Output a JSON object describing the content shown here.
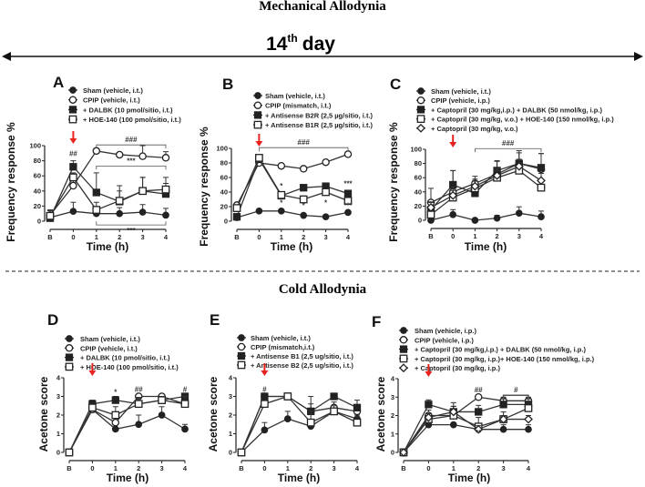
{
  "header": {
    "section1_title": "Mechanical Allodynia",
    "day_label": "14",
    "day_sup": "th",
    "day_word": "day",
    "section2_title": "Cold Allodynia"
  },
  "colors": {
    "mark": "#222222",
    "arrow": "#e8231f"
  },
  "chart_data": [
    {
      "type": "line",
      "panel": "A",
      "xlabel": "Time (h)",
      "ylabel": "Frequency response %",
      "categories": [
        "B",
        "0",
        "1",
        "2",
        "3",
        "4"
      ],
      "ylim": [
        0,
        100
      ],
      "yticks": [
        0,
        20,
        40,
        60,
        80,
        100
      ],
      "series": [
        {
          "name": "Sham (vehicle, i.t.)",
          "marker": "filled-circle",
          "values": [
            5,
            13,
            10,
            10,
            12,
            8
          ],
          "err": [
            10,
            12,
            8,
            8,
            10,
            9
          ]
        },
        {
          "name": "CPIP (vehicle, i.t.)",
          "marker": "open-circle",
          "values": [
            8,
            47,
            93,
            88,
            86,
            84
          ],
          "err": [
            6,
            8,
            3,
            3,
            14,
            8
          ]
        },
        {
          "name": "+ DALBK (10 pmol/sitio, i.t.)",
          "marker": "filled-square",
          "values": [
            4,
            72,
            38,
            26,
            40,
            36
          ],
          "err": [
            6,
            8,
            26,
            14,
            18,
            14
          ]
        },
        {
          "name": "+ HOE-140 (100 pmol/sitio, i.t.)",
          "marker": "open-square",
          "values": [
            7,
            58,
            15,
            27,
            40,
            42
          ],
          "err": [
            7,
            6,
            10,
            20,
            18,
            16
          ]
        }
      ],
      "annotations": [
        {
          "text": "##",
          "x": 1,
          "y": 86
        },
        {
          "text": "###",
          "from": 2,
          "to": 5,
          "y": 101
        },
        {
          "text": "***",
          "from": 2,
          "to": 5,
          "y": 73
        },
        {
          "text": "***",
          "from": 2,
          "to": 5,
          "y": -5,
          "below": true
        }
      ]
    },
    {
      "type": "line",
      "panel": "B",
      "xlabel": "Time (h)",
      "ylabel": "Frequency response %",
      "categories": [
        "B",
        "0",
        "1",
        "2",
        "3",
        "4"
      ],
      "ylim": [
        0,
        100
      ],
      "yticks": [
        0,
        20,
        40,
        60,
        80,
        100
      ],
      "series": [
        {
          "name": "Sham (vehicle, i.t.)",
          "marker": "filled-circle",
          "values": [
            5,
            14,
            14,
            8,
            6,
            12
          ],
          "err": [
            0,
            0,
            0,
            0,
            0,
            0
          ]
        },
        {
          "name": "CPIP (mismatch, i.t.)",
          "marker": "open-circle",
          "values": [
            22,
            80,
            76,
            72,
            81,
            92
          ],
          "err": [
            0,
            0,
            0,
            0,
            0,
            0
          ]
        },
        {
          "name": "+ Antisense B2R (2,5 µg/sitio, i.t.)",
          "marker": "filled-square",
          "values": [
            6,
            85,
            35,
            46,
            48,
            38
          ],
          "err": [
            0,
            0,
            0,
            0,
            0,
            0
          ]
        },
        {
          "name": "+ Antisense B1R (2,5 µg/sitio, i.t.)",
          "marker": "open-square",
          "values": [
            18,
            87,
            36,
            30,
            40,
            28
          ],
          "err": [
            0,
            0,
            0,
            0,
            0,
            0
          ]
        }
      ],
      "annotations": [
        {
          "text": "###",
          "from": 1,
          "to": 5,
          "y": 101
        },
        {
          "text": "*",
          "x": 2,
          "y": 45
        },
        {
          "text": "*",
          "x": 2,
          "y": 22
        },
        {
          "text": "*",
          "x": 3,
          "y": 18
        },
        {
          "text": "*",
          "x": 4,
          "y": 22
        },
        {
          "text": "***",
          "x": 5,
          "y": 48
        },
        {
          "text": "***",
          "x": 5,
          "y": 18
        }
      ]
    },
    {
      "type": "line",
      "panel": "C",
      "xlabel": "Time (h)",
      "ylabel": "Frequency response %",
      "categories": [
        "B",
        "0",
        "1",
        "2",
        "3",
        "4"
      ],
      "ylim": [
        0,
        100
      ],
      "yticks": [
        0,
        20,
        40,
        60,
        80,
        100
      ],
      "series": [
        {
          "name": "Sham (vehicle, i.t.)",
          "marker": "filled-circle",
          "values": [
            0,
            8,
            0,
            3,
            10,
            5
          ],
          "err": [
            0,
            7,
            0,
            4,
            9,
            8
          ]
        },
        {
          "name": "CPIP (vehicle, i.p.)",
          "marker": "open-circle",
          "values": [
            25,
            40,
            52,
            65,
            80,
            72
          ],
          "err": [
            20,
            30,
            10,
            18,
            18,
            22
          ]
        },
        {
          "name": "+ Captopril (30 mg/kg,i.p.) + DALBK (50 nmol/kg, i.p.)",
          "marker": "filled-square",
          "values": [
            15,
            50,
            38,
            70,
            80,
            74
          ],
          "err": [
            10,
            20,
            8,
            14,
            15,
            20
          ]
        },
        {
          "name": "+ Captopril (30 mg/kg, v.o.) + HOE-140 (150 nmol/kg, i.p.)",
          "marker": "open-square",
          "values": [
            8,
            32,
            45,
            60,
            70,
            46
          ],
          "err": [
            8,
            10,
            10,
            10,
            10,
            10
          ]
        },
        {
          "name": "+ Captopril (30 mg/kg, v.o.)",
          "marker": "open-diamond",
          "values": [
            18,
            35,
            48,
            63,
            76,
            56
          ],
          "err": [
            8,
            12,
            10,
            10,
            10,
            10
          ]
        }
      ],
      "annotations": [
        {
          "text": "###",
          "from": 2,
          "to": 5,
          "y": 101
        }
      ]
    },
    {
      "type": "line",
      "panel": "D",
      "xlabel": "Time (h)",
      "ylabel": "Acetone score",
      "categories": [
        "B",
        "0",
        "1",
        "2",
        "3",
        "4"
      ],
      "ylim": [
        0,
        4
      ],
      "yticks": [
        0,
        1,
        2,
        3,
        4
      ],
      "series": [
        {
          "name": "Sham (vehicle, i.t.)",
          "marker": "filled-circle",
          "values": [
            0,
            2.3,
            1.25,
            1.5,
            2.0,
            1.25
          ],
          "err": [
            0,
            0.2,
            0.3,
            0.5,
            0.45,
            0.25
          ]
        },
        {
          "name": "CPIP (vehicle, i.t.)",
          "marker": "open-circle",
          "values": [
            0,
            2.3,
            1.6,
            3.0,
            3.0,
            2.6
          ],
          "err": [
            0,
            0.2,
            0.3,
            0.1,
            0.1,
            0.3
          ]
        },
        {
          "name": "+ DALBK (10 pmol/sitio, i.t.)",
          "marker": "filled-square",
          "values": [
            0,
            2.6,
            2.8,
            2.6,
            2.8,
            3.0
          ],
          "err": [
            0,
            0.2,
            0.2,
            0.3,
            0.2,
            0.1
          ]
        },
        {
          "name": "+ HOE-140 (100 pmol/sitio, i.t.)",
          "marker": "open-square",
          "values": [
            0,
            2.4,
            2.0,
            2.6,
            2.8,
            2.6
          ],
          "err": [
            0,
            0.2,
            0.45,
            0.35,
            0.2,
            0.4
          ]
        }
      ],
      "annotations": [
        {
          "text": "*",
          "x": 2,
          "y": 3.1
        },
        {
          "text": "##",
          "x": 3,
          "y": 3.25
        },
        {
          "text": "#",
          "x": 5,
          "y": 3.25
        }
      ]
    },
    {
      "type": "line",
      "panel": "E",
      "xlabel": "Time (h)",
      "ylabel": "Acetone score",
      "categories": [
        "B",
        "0",
        "1",
        "2",
        "3",
        "4"
      ],
      "ylim": [
        0,
        4
      ],
      "yticks": [
        0,
        1,
        2,
        3,
        4
      ],
      "series": [
        {
          "name": "Sham (vehicle, i.t.)",
          "marker": "filled-circle",
          "values": [
            0,
            1.2,
            1.8,
            1.4,
            2.2,
            1.8
          ],
          "err": [
            0,
            0.4,
            0.4,
            0.1,
            0.1,
            0.2
          ]
        },
        {
          "name": "CPIP (mismatch,i.t.)",
          "marker": "open-circle",
          "values": [
            0,
            3.0,
            3.0,
            2.2,
            2.4,
            2.2
          ],
          "err": [
            0,
            0.1,
            0.1,
            0.4,
            0.3,
            0.3
          ]
        },
        {
          "name": "+ Antisense B1 (2,5 ug/sitio, i.t.)",
          "marker": "filled-square",
          "values": [
            0,
            3.0,
            3.0,
            2.2,
            3.0,
            2.4
          ],
          "err": [
            0,
            0.1,
            0.1,
            0.8,
            0.1,
            0.4
          ]
        },
        {
          "name": "+ Antisense B2 (2,5 ug/sitio, i.t.)",
          "marker": "open-square",
          "values": [
            0,
            2.6,
            3.0,
            1.6,
            2.2,
            1.6
          ],
          "err": [
            0,
            0.2,
            0.1,
            0.6,
            0.3,
            0.3
          ]
        }
      ],
      "annotations": [
        {
          "text": "#",
          "x": 1,
          "y": 3.25
        }
      ]
    },
    {
      "type": "line",
      "panel": "F",
      "xlabel": "Time (h)",
      "ylabel": "Acetone score",
      "categories": [
        "B",
        "0",
        "1",
        "2",
        "3",
        "4"
      ],
      "ylim": [
        0,
        4
      ],
      "yticks": [
        0,
        1,
        2,
        3,
        4
      ],
      "series": [
        {
          "name": "Sham (vehicle, i.p.)",
          "marker": "filled-circle",
          "values": [
            0,
            1.5,
            1.5,
            1.25,
            1.25,
            1.25
          ],
          "err": [
            0,
            0.1,
            0.1,
            0.1,
            0.25,
            0.25
          ]
        },
        {
          "name": "CPIP (vehicle, i.p.)",
          "marker": "open-circle",
          "values": [
            0,
            2.0,
            2.0,
            3.0,
            2.8,
            2.8
          ],
          "err": [
            0,
            0.3,
            0.5,
            0.1,
            0.2,
            0.2
          ]
        },
        {
          "name": "+ Captopril (30 mg/kg,i.p.) + DALBK (50 nmol/kg, i.p.)",
          "marker": "filled-square",
          "values": [
            0,
            2.6,
            2.2,
            2.2,
            2.6,
            2.6
          ],
          "err": [
            0,
            0.25,
            0.5,
            0.35,
            0.3,
            0.3
          ]
        },
        {
          "name": "+ Captopril (30 mg/kg, i.p.)+ HOE-140 (150 nmol/kg, i.p.)",
          "marker": "open-square",
          "values": [
            0,
            1.8,
            2.0,
            1.4,
            1.8,
            2.4
          ],
          "err": [
            0,
            0.2,
            0.3,
            0.5,
            0.4,
            0.3
          ]
        },
        {
          "name": "+ Captopril (30 mg/kg, i.p.)",
          "marker": "open-diamond",
          "values": [
            0,
            1.9,
            2.2,
            1.25,
            1.8,
            1.8
          ],
          "err": [
            0,
            0.2,
            0.3,
            0.2,
            0.2,
            0.2
          ]
        }
      ],
      "annotations": [
        {
          "text": "##",
          "x": 3,
          "y": 3.25
        },
        {
          "text": "**",
          "x": 3,
          "y": 0.95
        },
        {
          "text": "#",
          "from": 4,
          "to": 5,
          "y": 3.1,
          "closed": true
        }
      ]
    }
  ]
}
